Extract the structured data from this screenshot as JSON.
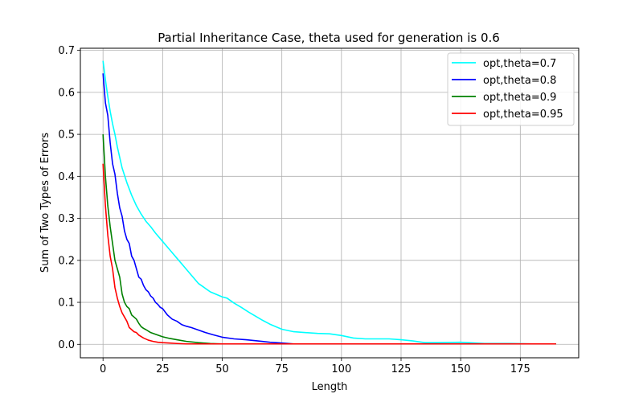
{
  "chart_data": {
    "type": "line",
    "title": "Partial Inheritance Case, theta used for generation is 0.6",
    "xlabel": "Length",
    "ylabel": "Sum of Two Types of Errors",
    "xlim": [
      -9.5,
      199.5
    ],
    "ylim": [
      -0.032,
      0.705
    ],
    "xticks": [
      0,
      25,
      50,
      75,
      100,
      125,
      150,
      175
    ],
    "yticks": [
      0.0,
      0.1,
      0.2,
      0.3,
      0.4,
      0.5,
      0.6,
      0.7
    ],
    "grid": true,
    "legend_position": "top-right",
    "series": [
      {
        "name": "opt,theta=0.7",
        "color": "#00ffff",
        "x": [
          0,
          1,
          2,
          3,
          4,
          5,
          6,
          7,
          8,
          10,
          12,
          14,
          16,
          18,
          20,
          22,
          25,
          28,
          31,
          34,
          37,
          40,
          45,
          50,
          52,
          55,
          58,
          61,
          64,
          67,
          70,
          75,
          80,
          85,
          90,
          95,
          100,
          105,
          110,
          115,
          120,
          125,
          130,
          135,
          140,
          150,
          160,
          170,
          180,
          190
        ],
        "y": [
          0.675,
          0.63,
          0.59,
          0.555,
          0.525,
          0.5,
          0.47,
          0.445,
          0.42,
          0.385,
          0.355,
          0.33,
          0.31,
          0.293,
          0.28,
          0.265,
          0.245,
          0.225,
          0.205,
          0.185,
          0.165,
          0.145,
          0.125,
          0.113,
          0.11,
          0.098,
          0.088,
          0.077,
          0.067,
          0.057,
          0.048,
          0.036,
          0.03,
          0.028,
          0.026,
          0.025,
          0.021,
          0.015,
          0.013,
          0.013,
          0.013,
          0.011,
          0.008,
          0.004,
          0.004,
          0.005,
          0.002,
          0.002,
          0.001,
          0.001
        ]
      },
      {
        "name": "opt,theta=0.8",
        "color": "#0000ff",
        "x": [
          0,
          1,
          2,
          3,
          4,
          5,
          6,
          7,
          8,
          9,
          10,
          11,
          12,
          13,
          14,
          15,
          16,
          17,
          18,
          19,
          20,
          21,
          22,
          23,
          24,
          25,
          27,
          29,
          31,
          33,
          35,
          37,
          40,
          43,
          46,
          50,
          55,
          60,
          65,
          70,
          75,
          80,
          90,
          100,
          110,
          120,
          130,
          140,
          150,
          160,
          170,
          180,
          190
        ],
        "y": [
          0.645,
          0.575,
          0.545,
          0.48,
          0.43,
          0.405,
          0.36,
          0.325,
          0.305,
          0.27,
          0.25,
          0.24,
          0.21,
          0.2,
          0.18,
          0.16,
          0.155,
          0.14,
          0.13,
          0.125,
          0.115,
          0.11,
          0.1,
          0.095,
          0.088,
          0.085,
          0.07,
          0.06,
          0.055,
          0.047,
          0.043,
          0.04,
          0.034,
          0.028,
          0.023,
          0.017,
          0.013,
          0.011,
          0.008,
          0.005,
          0.003,
          0.001,
          0.001,
          0.001,
          0.001,
          0.001,
          0.001,
          0.001,
          0.001,
          0.001,
          0.001,
          0.001,
          0.001
        ]
      },
      {
        "name": "opt,theta=0.9",
        "color": "#008000",
        "x": [
          0,
          1,
          2,
          3,
          4,
          5,
          6,
          7,
          8,
          9,
          10,
          11,
          12,
          13,
          14,
          15,
          16,
          17,
          18,
          20,
          22,
          25,
          28,
          31,
          35,
          40,
          45,
          50,
          60,
          70,
          80,
          100,
          120,
          140,
          160,
          190
        ],
        "y": [
          0.5,
          0.4,
          0.33,
          0.28,
          0.24,
          0.2,
          0.18,
          0.16,
          0.12,
          0.1,
          0.09,
          0.085,
          0.07,
          0.065,
          0.06,
          0.05,
          0.042,
          0.038,
          0.035,
          0.028,
          0.024,
          0.018,
          0.014,
          0.011,
          0.007,
          0.004,
          0.002,
          0.001,
          0.001,
          0.001,
          0.001,
          0.001,
          0.001,
          0.001,
          0.001,
          0.001
        ]
      },
      {
        "name": "opt,theta=0.95",
        "color": "#ff0000",
        "x": [
          0,
          1,
          2,
          3,
          4,
          5,
          6,
          7,
          8,
          9,
          10,
          11,
          12,
          13,
          14,
          15,
          17,
          19,
          21,
          23,
          25,
          28,
          31,
          35,
          40,
          50,
          60,
          80,
          100,
          130,
          160,
          190
        ],
        "y": [
          0.43,
          0.33,
          0.26,
          0.21,
          0.18,
          0.135,
          0.11,
          0.09,
          0.075,
          0.065,
          0.055,
          0.04,
          0.035,
          0.03,
          0.028,
          0.022,
          0.015,
          0.01,
          0.007,
          0.005,
          0.004,
          0.003,
          0.002,
          0.001,
          0.001,
          0.001,
          0.001,
          0.001,
          0.001,
          0.001,
          0.001,
          0.001
        ]
      }
    ]
  }
}
